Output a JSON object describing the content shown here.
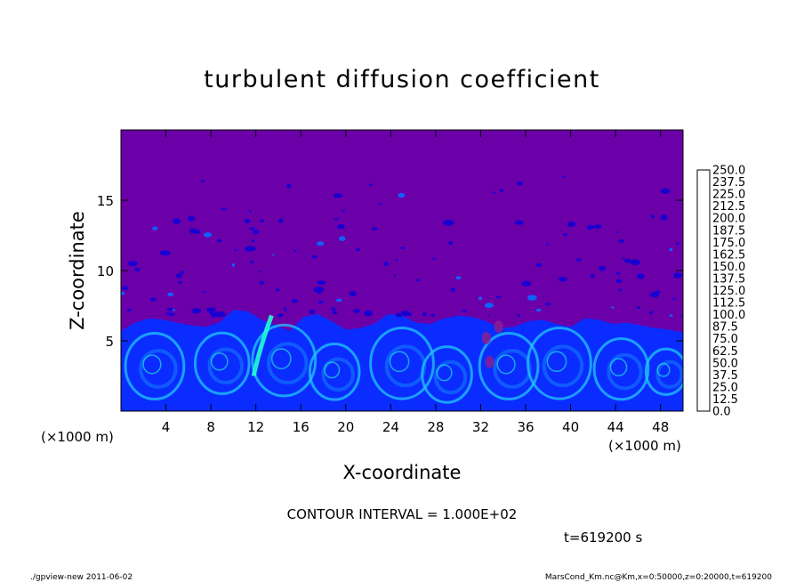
{
  "chart_data": {
    "type": "heatmap",
    "title": "turbulent diffusion coefficient",
    "xlabel": "X-coordinate",
    "ylabel": "Z-coordinate",
    "x_unit_left": "(×1000 m)",
    "x_unit_right": "(×1000 m)",
    "xlim": [
      0,
      50
    ],
    "ylim": [
      0,
      20
    ],
    "x_ticks": [
      4,
      8,
      12,
      16,
      20,
      24,
      28,
      32,
      36,
      40,
      44,
      48
    ],
    "y_ticks": [
      5,
      10,
      15
    ],
    "colorbar": {
      "levels": [
        "0.0",
        "12.5",
        "25.0",
        "37.5",
        "50.0",
        "62.5",
        "75.0",
        "87.5",
        "100.0",
        "112.5",
        "125.0",
        "137.5",
        "150.0",
        "162.5",
        "175.0",
        "187.5",
        "200.0",
        "212.5",
        "225.0",
        "237.5",
        "250.0"
      ],
      "colors": [
        "#6c00a8",
        "#1a00b0",
        "#0000e0",
        "#0b2cff",
        "#1060ff",
        "#1a96ff",
        "#20c8ff",
        "#20ffd0",
        "#10e890",
        "#10d050",
        "#30e030",
        "#70f020",
        "#b0f020",
        "#e0f010",
        "#ffe000",
        "#ffb000",
        "#ff8000",
        "#ff5010",
        "#ff3030",
        "#ff6060",
        "#ff9090"
      ]
    },
    "boundary_layer_height_km": [
      5.7,
      6.3,
      6.6,
      6.5,
      6.3,
      6.1,
      6.0,
      6.3,
      7.2,
      7.1,
      6.5,
      6.1,
      5.7,
      6.7,
      6.9,
      6.4,
      5.8,
      5.9,
      6.2,
      6.9,
      6.8,
      6.3,
      6.2,
      6.6,
      6.8,
      6.7,
      6.4,
      5.9,
      6.0,
      6.4,
      6.5,
      6.2,
      6.0,
      6.6,
      6.5,
      6.2,
      6.3,
      6.1,
      5.9,
      5.8,
      5.6
    ]
  },
  "annotations": {
    "contour_interval": "CONTOUR INTERVAL = 1.000E+02",
    "time": "t=619200 s"
  },
  "footer": {
    "left": "./gpview-new   2011-06-02",
    "right": "MarsCond_Km.nc@Km,x=0:50000,z=0:20000,t=619200"
  },
  "colors": {
    "background_field": "#6c00a8"
  }
}
